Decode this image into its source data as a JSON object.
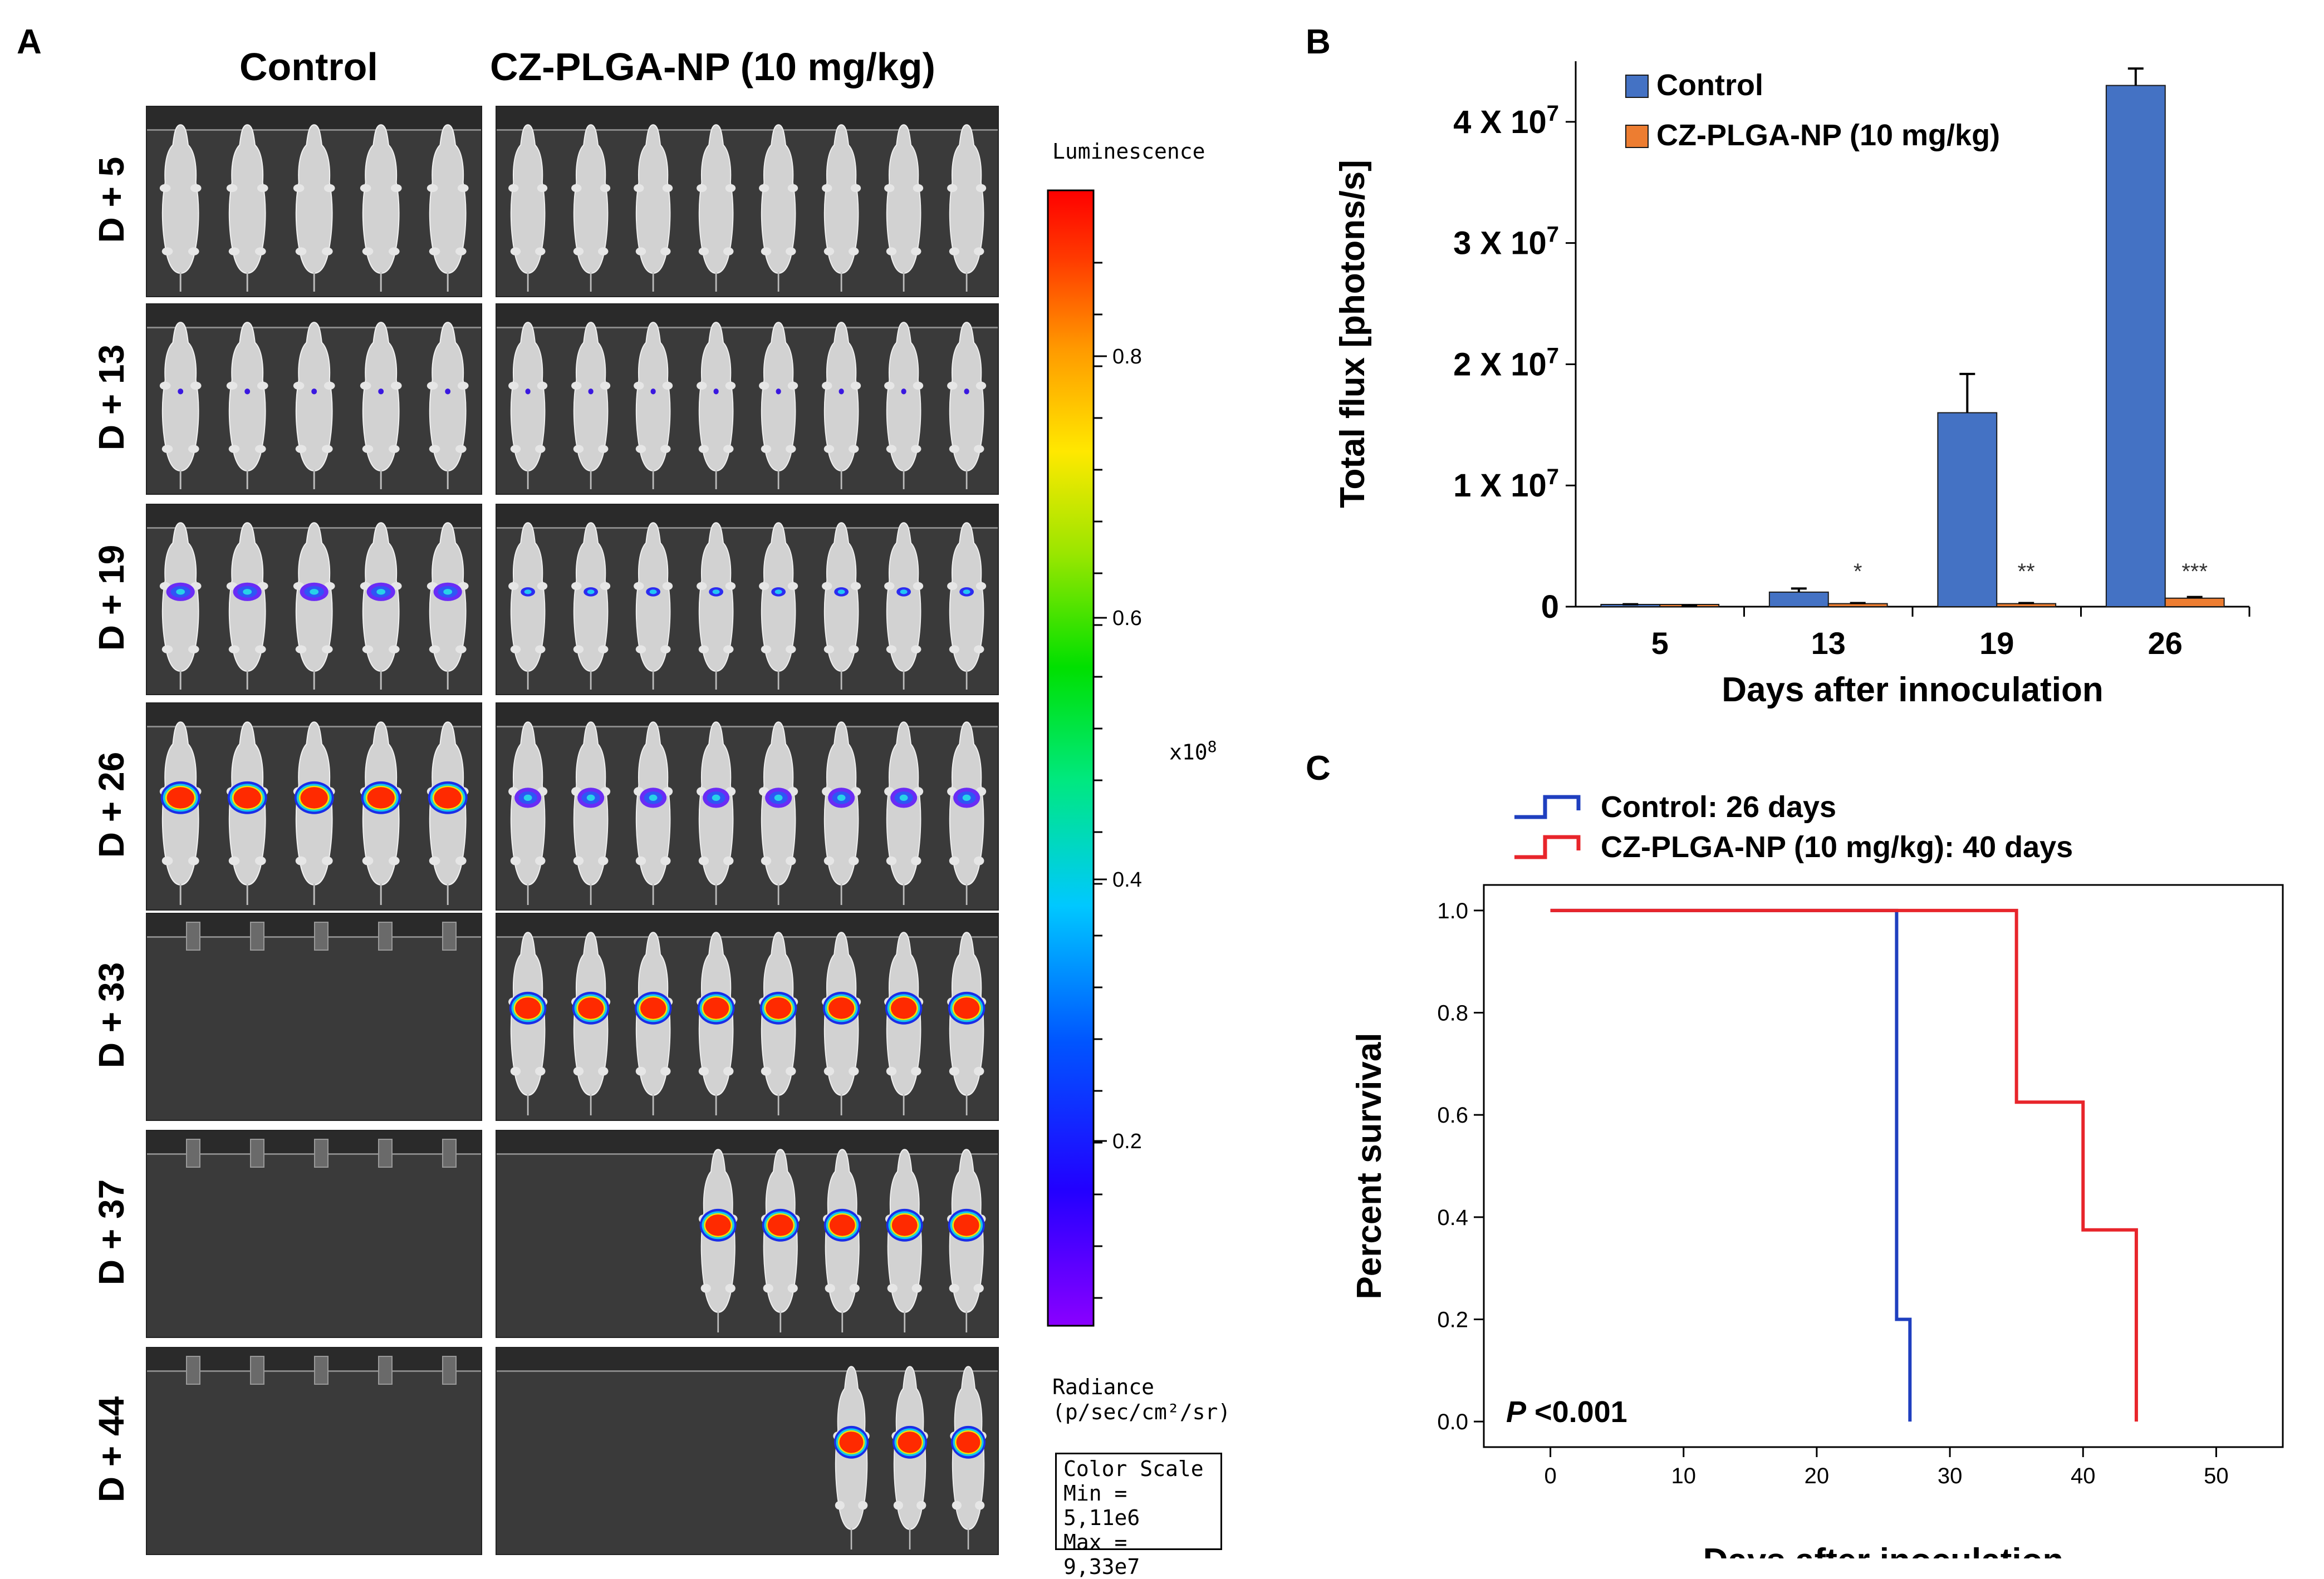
{
  "panel_a": {
    "letter": "A",
    "header_control": "Control",
    "header_treated": "CZ-PLGA-NP  (10 mg/kg)",
    "rows": [
      {
        "label": "D + 5"
      },
      {
        "label": "D + 13"
      },
      {
        "label": "D + 19"
      },
      {
        "label": "D + 26"
      },
      {
        "label": "D + 33"
      },
      {
        "label": "D + 37"
      },
      {
        "label": "D + 44"
      }
    ],
    "colorbar": {
      "title": "Luminescence",
      "ticks": [
        "0.8",
        "0.6",
        "0.4",
        "0.2"
      ],
      "multiplier": "x10",
      "multiplier_exp": "8",
      "radiance_label": "Radiance",
      "radiance_units": "(p/sec/cm²/sr)",
      "scale_title": "Color Scale",
      "scale_min": "Min = 5,11e6",
      "scale_max": "Max = 9,33e7"
    }
  },
  "chart_data": [
    {
      "type": "bar",
      "panel": "B",
      "title": "",
      "xlabel": "Days after innoculation",
      "ylabel": "Total flux [photons/s]",
      "categories": [
        "5",
        "13",
        "19",
        "26"
      ],
      "ylim": [
        0,
        45000000
      ],
      "yticks": [
        {
          "value": 0,
          "label": "0"
        },
        {
          "value": 10000000,
          "label": "1 X 10",
          "exp": "7"
        },
        {
          "value": 20000000,
          "label": "2 X 10",
          "exp": "7"
        },
        {
          "value": 30000000,
          "label": "3 X 10",
          "exp": "7"
        },
        {
          "value": 40000000,
          "label": "4 X 10",
          "exp": "7"
        }
      ],
      "series": [
        {
          "name": "Control",
          "color": "#4472C4",
          "values": [
            150000,
            1200000,
            16000000,
            43000000
          ],
          "errors": [
            50000,
            300000,
            3200000,
            1400000
          ]
        },
        {
          "name": "CZ-PLGA-NP (10 mg/kg)",
          "color": "#ED7D31",
          "values": [
            50000,
            250000,
            250000,
            700000
          ],
          "errors": [
            20000,
            50000,
            50000,
            100000
          ]
        }
      ],
      "significance": [
        "",
        "*",
        "**",
        "***"
      ],
      "legend_position": "top-left"
    },
    {
      "type": "line",
      "subtype": "kaplan-meier",
      "panel": "C",
      "xlabel": "Days after inoculation",
      "ylabel": "Percent survival",
      "xlim": [
        -5,
        55
      ],
      "ylim": [
        -0.05,
        1.05
      ],
      "xticks": [
        0,
        10,
        20,
        30,
        40,
        50
      ],
      "yticks": [
        "0.0",
        "0.2",
        "0.4",
        "0.6",
        "0.8",
        "1.0"
      ],
      "series": [
        {
          "name": "Control: 26 days",
          "color": "#1F3FBF",
          "steps": [
            [
              0,
              1.0
            ],
            [
              26,
              1.0
            ],
            [
              26,
              0.2
            ],
            [
              27,
              0.2
            ],
            [
              27,
              0.0
            ]
          ]
        },
        {
          "name": "CZ-PLGA-NP (10 mg/kg): 40 days",
          "color": "#E8252B",
          "steps": [
            [
              0,
              1.0
            ],
            [
              35,
              1.0
            ],
            [
              35,
              0.625
            ],
            [
              40,
              0.625
            ],
            [
              40,
              0.375
            ],
            [
              44,
              0.375
            ],
            [
              44,
              0.0
            ]
          ]
        }
      ],
      "annotation_p": "P",
      "annotation_value": " <0.001",
      "legend_position": "top"
    }
  ],
  "panel_letters": {
    "b": "B",
    "c": "C"
  }
}
